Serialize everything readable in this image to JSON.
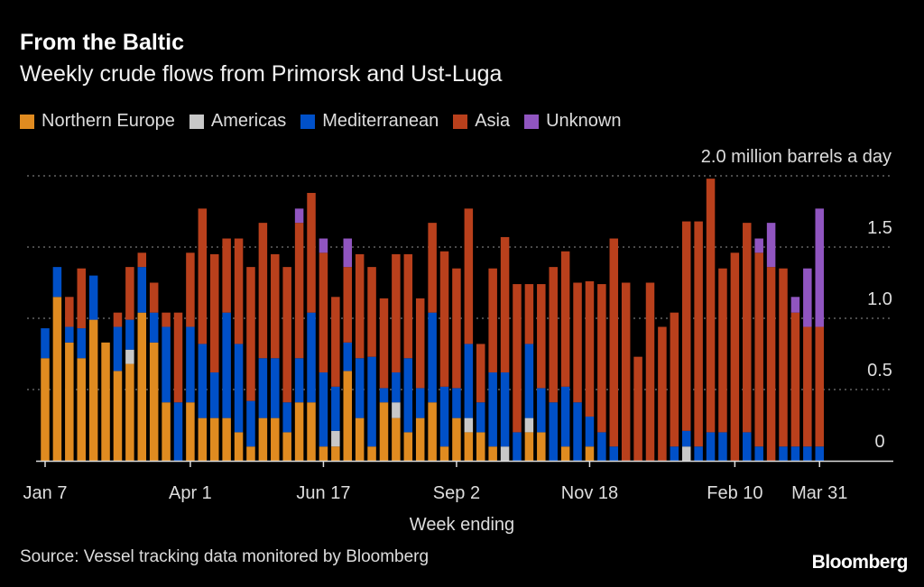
{
  "title": "From the Baltic",
  "subtitle": "Weekly crude flows from Primorsk and Ust-Luga",
  "source": "Source: Vessel tracking data monitored by Bloomberg",
  "logo": "Bloomberg",
  "chart_data": {
    "type": "bar",
    "stacked": true,
    "title": "From the Baltic",
    "subtitle": "Weekly crude flows from Primorsk and Ust-Luga",
    "xlabel": "Week ending",
    "ylabel": "million barrels a day",
    "ylim": [
      0,
      2.0
    ],
    "yticks": [
      0,
      0.5,
      1.0,
      1.5,
      2.0
    ],
    "ytick_labels": [
      "0",
      "0.5",
      "1.0",
      "1.5",
      "2.0 million barrels a day"
    ],
    "xtick_labels": [
      "Jan 7",
      "Apr 1",
      "Jun 17",
      "Sep 2",
      "Nov 18",
      "Feb 10",
      "Mar 31"
    ],
    "grid": true,
    "legend_position": "top-left",
    "categories": [
      "Jan 7",
      "Jan 14",
      "Jan 21",
      "Jan 28",
      "Feb 4",
      "Feb 11",
      "Feb 18",
      "Feb 25",
      "Mar 4",
      "Mar 11",
      "Mar 18",
      "Mar 25",
      "Apr 1",
      "Apr 8",
      "Apr 15",
      "Apr 22",
      "Apr 29",
      "May 6",
      "May 13",
      "May 20",
      "May 27",
      "Jun 3",
      "Jun 10",
      "Jun 17",
      "Jun 24",
      "Jul 1",
      "Jul 8",
      "Jul 15",
      "Jul 22",
      "Jul 29",
      "Aug 5",
      "Aug 12",
      "Aug 19",
      "Aug 26",
      "Sep 2",
      "Sep 9",
      "Sep 16",
      "Sep 23",
      "Sep 30",
      "Oct 7",
      "Oct 14",
      "Oct 21",
      "Oct 28",
      "Nov 4",
      "Nov 11",
      "Nov 18",
      "Nov 25",
      "Dec 2",
      "Dec 9",
      "Dec 16",
      "Dec 23",
      "Dec 30",
      "Jan 6",
      "Jan 13",
      "Jan 20",
      "Jan 27",
      "Feb 3",
      "Feb 10",
      "Feb 17",
      "Feb 24",
      "Mar 3",
      "Mar 10",
      "Mar 17",
      "Mar 24",
      "Mar 31"
    ],
    "series": [
      {
        "name": "Northern Europe",
        "color": "#e08b20",
        "values": [
          0.72,
          1.15,
          0.83,
          0.72,
          0.99,
          0.83,
          0.63,
          0.68,
          1.04,
          0.83,
          0.41,
          0,
          0.41,
          0.3,
          0.3,
          0.3,
          0.2,
          0.1,
          0.3,
          0.3,
          0.2,
          0.41,
          0.41,
          0.1,
          0.1,
          0.63,
          0.3,
          0.1,
          0.41,
          0.3,
          0.2,
          0.3,
          0.41,
          0.1,
          0.3,
          0.2,
          0.2,
          0.1,
          0,
          0,
          0.2,
          0.2,
          0,
          0.1,
          0,
          0.1,
          0,
          0,
          0,
          0,
          0,
          0,
          0,
          0,
          0,
          0,
          0,
          0,
          0,
          0,
          0,
          0,
          0,
          0,
          0
        ]
      },
      {
        "name": "Americas",
        "color": "#c8c8c8",
        "values": [
          0,
          0,
          0,
          0,
          0,
          0,
          0,
          0.1,
          0,
          0,
          0,
          0,
          0,
          0,
          0,
          0,
          0,
          0,
          0,
          0,
          0,
          0,
          0,
          0,
          0.11,
          0,
          0,
          0,
          0,
          0.11,
          0,
          0,
          0,
          0,
          0,
          0.1,
          0,
          0,
          0.1,
          0,
          0.1,
          0,
          0,
          0,
          0,
          0,
          0,
          0,
          0,
          0,
          0,
          0,
          0,
          0.1,
          0,
          0,
          0,
          0,
          0,
          0,
          0,
          0,
          0,
          0,
          0
        ]
      },
      {
        "name": "Mediterranean",
        "color": "#0050c8",
        "values": [
          0.21,
          0.21,
          0.11,
          0.21,
          0.31,
          0,
          0.31,
          0.21,
          0.32,
          0.21,
          0.53,
          0.41,
          0.53,
          0.52,
          0.32,
          0.74,
          0.62,
          0.32,
          0.42,
          0.42,
          0.21,
          0.31,
          0.63,
          0.52,
          0.31,
          0.2,
          0.42,
          0.63,
          0.1,
          0.21,
          0.52,
          0.21,
          0.63,
          0.42,
          0.21,
          0.52,
          0.21,
          0.52,
          0.52,
          0.2,
          0.52,
          0.31,
          0.41,
          0.42,
          0.41,
          0.21,
          0.2,
          0.1,
          0,
          0,
          0,
          0,
          0.1,
          0.11,
          0.1,
          0.2,
          0.2,
          0,
          0.2,
          0.1,
          0,
          0.1,
          0.1,
          0.1,
          0.1
        ]
      },
      {
        "name": "Asia",
        "color": "#b9401c",
        "values": [
          0,
          0,
          0.21,
          0.42,
          0,
          0,
          0.1,
          0.37,
          0.1,
          0.21,
          0.1,
          0.63,
          0.52,
          0.95,
          0.83,
          0.52,
          0.74,
          0.94,
          0.95,
          0.73,
          0.95,
          0.95,
          0.84,
          0.84,
          0.63,
          0.53,
          0.73,
          0.63,
          0.63,
          0.83,
          0.73,
          0.63,
          0.63,
          0.95,
          0.84,
          0.95,
          0.41,
          0.73,
          0.95,
          1.04,
          0.42,
          0.73,
          0.95,
          0.95,
          0.84,
          0.95,
          1.04,
          1.46,
          1.25,
          0.73,
          1.25,
          0.94,
          0.94,
          1.47,
          1.58,
          1.78,
          1.15,
          1.46,
          1.47,
          1.36,
          1.36,
          1.25,
          0.94,
          0.84,
          0.84
        ]
      },
      {
        "name": "Unknown",
        "color": "#9055c0",
        "values": [
          0,
          0,
          0,
          0,
          0,
          0,
          0,
          0,
          0,
          0,
          0,
          0,
          0,
          0,
          0,
          0,
          0,
          0,
          0,
          0,
          0,
          0.1,
          0,
          0.1,
          0,
          0.2,
          0,
          0,
          0,
          0,
          0,
          0,
          0,
          0,
          0,
          0,
          0,
          0,
          0,
          0,
          0,
          0,
          0,
          0,
          0,
          0,
          0,
          0,
          0,
          0,
          0,
          0,
          0,
          0,
          0,
          0,
          0,
          0,
          0,
          0.1,
          0.31,
          0,
          0.11,
          0.41,
          0.83
        ]
      }
    ]
  }
}
